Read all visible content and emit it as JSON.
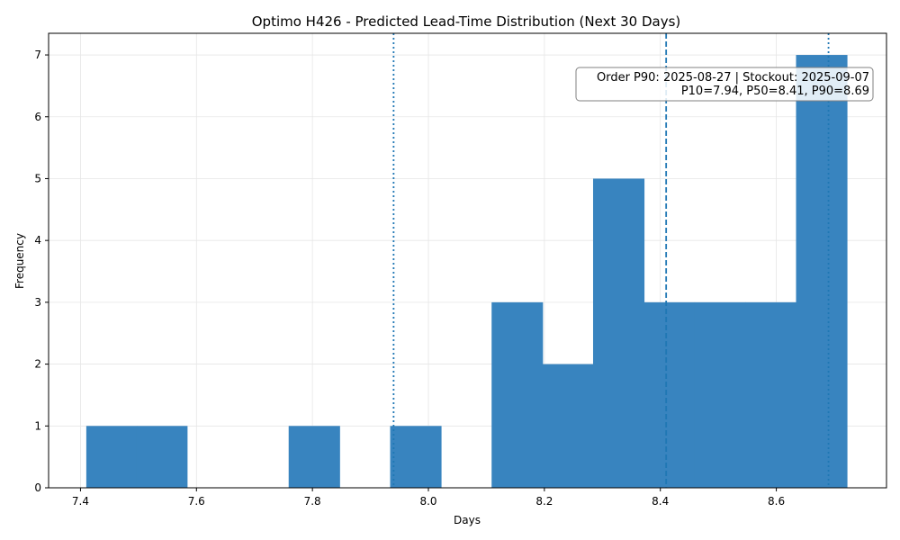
{
  "chart_data": {
    "type": "bar",
    "title": "Optimo H426 - Predicted Lead-Time Distribution (Next 30 Days)",
    "xlabel": "Days",
    "ylabel": "Frequency",
    "xlim": [
      7.345,
      8.79
    ],
    "ylim": [
      0,
      7.35
    ],
    "xticks": [
      7.4,
      7.6,
      7.8,
      8.0,
      8.2,
      8.4,
      8.6
    ],
    "xtick_labels": [
      "7.4",
      "7.6",
      "7.8",
      "8.0",
      "8.2",
      "8.4",
      "8.6"
    ],
    "yticks": [
      0,
      1,
      2,
      3,
      4,
      5,
      6,
      7
    ],
    "ytick_labels": [
      "0",
      "1",
      "2",
      "3",
      "4",
      "5",
      "6",
      "7"
    ],
    "grid": true,
    "bar_color": "#3884bf",
    "bins": [
      {
        "x0": 7.41,
        "x1": 7.497,
        "count": 1
      },
      {
        "x0": 7.497,
        "x1": 7.584,
        "count": 1
      },
      {
        "x0": 7.584,
        "x1": 7.672,
        "count": 0
      },
      {
        "x0": 7.672,
        "x1": 7.759,
        "count": 0
      },
      {
        "x0": 7.759,
        "x1": 7.847,
        "count": 1
      },
      {
        "x0": 7.847,
        "x1": 7.934,
        "count": 0
      },
      {
        "x0": 7.934,
        "x1": 8.022,
        "count": 1
      },
      {
        "x0": 8.022,
        "x1": 8.109,
        "count": 0
      },
      {
        "x0": 8.109,
        "x1": 8.197,
        "count": 3
      },
      {
        "x0": 8.197,
        "x1": 8.284,
        "count": 2
      },
      {
        "x0": 8.284,
        "x1": 8.372,
        "count": 5
      },
      {
        "x0": 8.372,
        "x1": 8.459,
        "count": 3
      },
      {
        "x0": 8.459,
        "x1": 8.547,
        "count": 3
      },
      {
        "x0": 8.547,
        "x1": 8.634,
        "count": 3
      },
      {
        "x0": 8.634,
        "x1": 8.722,
        "count": 7
      }
    ],
    "reference_lines": [
      {
        "value": 7.94,
        "style": "dotted",
        "color": "#1f77b4"
      },
      {
        "value": 8.41,
        "style": "dashed",
        "color": "#1f77b4"
      },
      {
        "value": 8.69,
        "style": "dotted",
        "color": "#1f77b4"
      }
    ],
    "annotation": {
      "line1": "Order P90: 2025-08-27 | Stockout: 2025-09-07",
      "line2": "P10=7.94, P50=8.41, P90=8.69",
      "placement": "top-right"
    }
  }
}
